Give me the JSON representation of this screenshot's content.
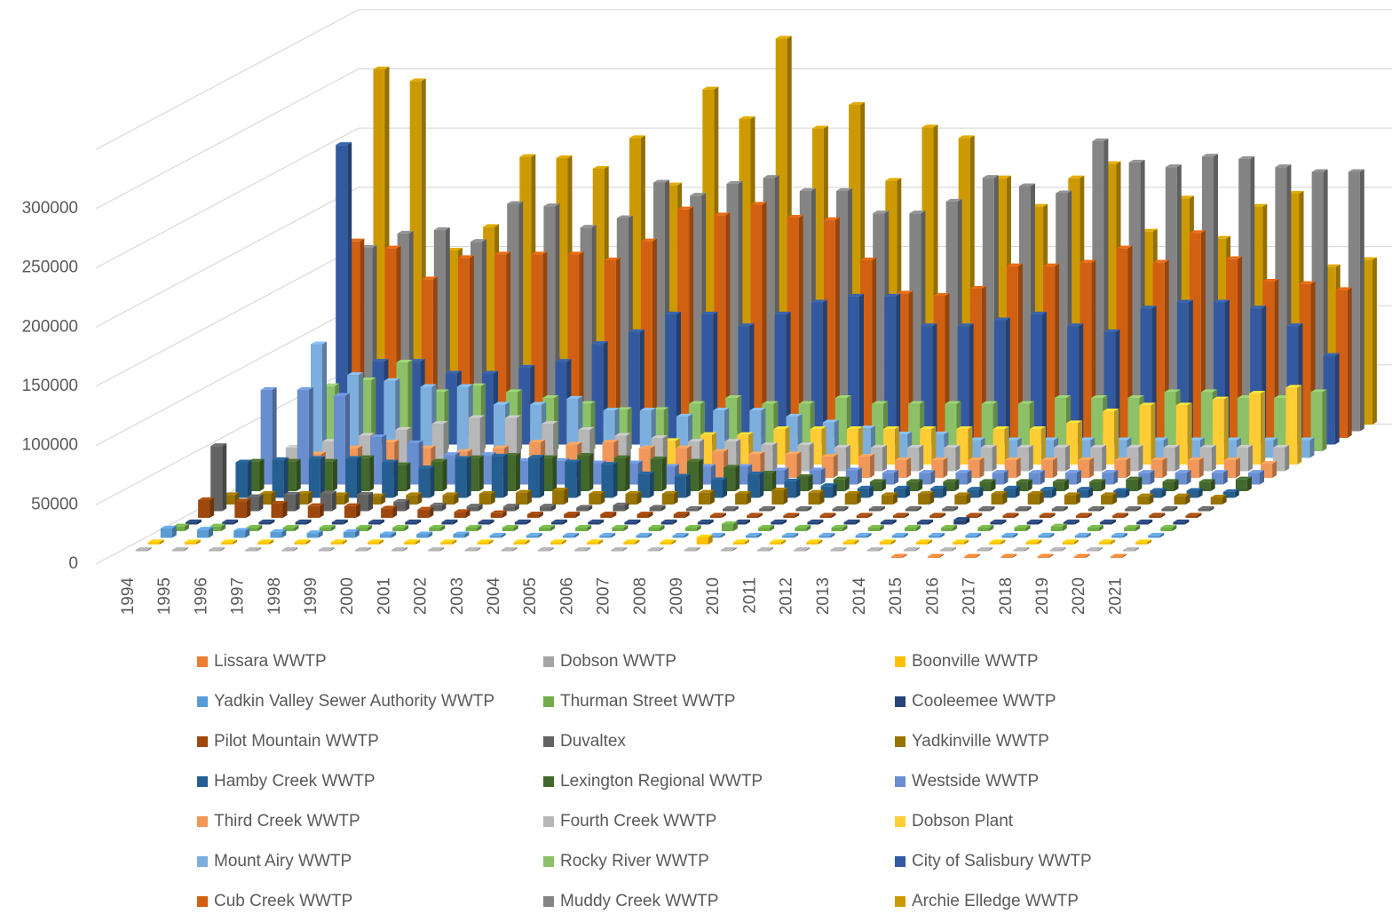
{
  "chart_data": {
    "type": "bar3d",
    "categories": [
      "1994",
      "1995",
      "1996",
      "1997",
      "1998",
      "1999",
      "2000",
      "2001",
      "2002",
      "2003",
      "2004",
      "2005",
      "2006",
      "2007",
      "2008",
      "2009",
      "2010",
      "2011",
      "2012",
      "2013",
      "2014",
      "2015",
      "2016",
      "2017",
      "2018",
      "2019",
      "2020",
      "2021"
    ],
    "ylim": [
      0,
      350000
    ],
    "yticks": [
      0,
      50000,
      100000,
      150000,
      200000,
      250000,
      300000
    ],
    "grid": true,
    "series": [
      {
        "name": "Lissara WWTP",
        "color": "#ed7d31",
        "values": [
          null,
          null,
          null,
          null,
          null,
          null,
          null,
          null,
          null,
          null,
          null,
          null,
          null,
          null,
          null,
          null,
          null,
          null,
          null,
          null,
          null,
          1000,
          1000,
          1000,
          1000,
          1000,
          1000,
          1000
        ]
      },
      {
        "name": "Dobson WWTP",
        "color": "#a5a5a5",
        "values": [
          1000,
          1000,
          1000,
          1000,
          1000,
          1000,
          1000,
          1000,
          1000,
          1000,
          1000,
          1000,
          1000,
          1000,
          1000,
          1000,
          1000,
          1000,
          1000,
          1000,
          1000,
          1000,
          1000,
          1000,
          1000,
          1000,
          1000,
          1000
        ]
      },
      {
        "name": "Boonville WWTP",
        "color": "#ffc000",
        "values": [
          2000,
          2000,
          2000,
          2000,
          2000,
          2000,
          2000,
          2000,
          2000,
          2000,
          2000,
          2000,
          2000,
          2000,
          2000,
          6000,
          2000,
          2000,
          2000,
          2000,
          2000,
          2000,
          2000,
          2000,
          2000,
          2000,
          2000,
          2000
        ]
      },
      {
        "name": "Yadkin Valley Sewer Authority WWTP",
        "color": "#5b9bd5",
        "values": [
          8000,
          7000,
          6000,
          5000,
          4000,
          5000,
          3000,
          3000,
          3000,
          2000,
          2000,
          2000,
          2000,
          2000,
          2000,
          2000,
          2000,
          2000,
          2000,
          2000,
          2000,
          2000,
          2000,
          2000,
          2000,
          2000,
          2000,
          2000
        ]
      },
      {
        "name": "Thurman Street WWTP",
        "color": "#70ad47",
        "values": [
          4000,
          4000,
          3000,
          3000,
          3000,
          3000,
          3000,
          3000,
          3000,
          3000,
          3000,
          3000,
          3000,
          3000,
          3000,
          6000,
          3000,
          3000,
          3000,
          3000,
          3000,
          3000,
          3000,
          3000,
          4000,
          3000,
          3000,
          3000
        ]
      },
      {
        "name": "Cooleemee WWTP",
        "color": "#264478",
        "values": [
          2000,
          2000,
          2000,
          2000,
          2000,
          2000,
          2000,
          2000,
          2000,
          2000,
          2000,
          2000,
          2000,
          2000,
          2000,
          2000,
          2000,
          2000,
          2000,
          2000,
          2000,
          4000,
          2000,
          2000,
          2000,
          2000,
          2000,
          2000
        ]
      },
      {
        "name": "Pilot Mountain WWTP",
        "color": "#9e480e",
        "values": [
          15000,
          14000,
          12000,
          10000,
          10000,
          8000,
          7000,
          5000,
          4000,
          3000,
          3000,
          3000,
          3000,
          3000,
          2000,
          2000,
          2000,
          2000,
          2000,
          2000,
          2000,
          2000,
          2000,
          2000,
          2000,
          2000,
          2000,
          2000
        ]
      },
      {
        "name": "Duvaltex",
        "color": "#636363",
        "values": [
          55000,
          12000,
          14000,
          15000,
          14000,
          8000,
          5000,
          4000,
          4000,
          4000,
          3000,
          5000,
          3000,
          2000,
          2000,
          2000,
          2000,
          2000,
          2000,
          2000,
          2000,
          2000,
          2000,
          2000,
          2000,
          2000,
          2000,
          2000
        ]
      },
      {
        "name": "Yadkinville WWTP",
        "color": "#997300",
        "values": [
          8000,
          9000,
          9000,
          8000,
          7000,
          8000,
          8000,
          9000,
          10000,
          12000,
          9000,
          9000,
          9000,
          10000,
          9000,
          12000,
          10000,
          9000,
          8000,
          9000,
          8000,
          9000,
          9000,
          8000,
          8000,
          7000,
          7000,
          6000
        ]
      },
      {
        "name": "Hamby Creek WWTP",
        "color": "#255e91",
        "values": [
          30000,
          32000,
          33000,
          33000,
          30000,
          25000,
          33000,
          35000,
          34000,
          30000,
          28000,
          20000,
          18000,
          15000,
          20000,
          14000,
          10000,
          8000,
          8000,
          8000,
          7000,
          8000,
          7000,
          7000,
          6000,
          6000,
          6000,
          5000
        ]
      },
      {
        "name": "Lexington Regional WWTP",
        "color": "#43682b",
        "values": [
          25000,
          25000,
          25000,
          28000,
          22000,
          25000,
          28000,
          30000,
          28000,
          30000,
          28000,
          27000,
          25000,
          20000,
          15000,
          12000,
          10000,
          8000,
          8000,
          8000,
          8000,
          8000,
          8000,
          8000,
          10000,
          8000,
          8000,
          10000
        ]
      },
      {
        "name": "Westside WWTP",
        "color": "#698ed0",
        "values": [
          80000,
          80000,
          75000,
          40000,
          35000,
          25000,
          25000,
          20000,
          20000,
          18000,
          18000,
          15000,
          15000,
          15000,
          12000,
          12000,
          12000,
          10000,
          10000,
          10000,
          10000,
          10000,
          10000,
          10000,
          10000,
          10000,
          10000,
          10000
        ]
      },
      {
        "name": "Third Creek WWTP",
        "color": "#f1975a",
        "values": [
          15000,
          20000,
          25000,
          30000,
          25000,
          22000,
          25000,
          30000,
          28000,
          30000,
          25000,
          25000,
          22000,
          20000,
          20000,
          18000,
          18000,
          15000,
          15000,
          15000,
          15000,
          15000,
          15000,
          15000,
          15000,
          15000,
          15000,
          12000
        ]
      },
      {
        "name": "Fourth Creek WWTP",
        "color": "#b7b7b7",
        "values": [
          20000,
          25000,
          30000,
          35000,
          40000,
          45000,
          45000,
          40000,
          35000,
          30000,
          28000,
          25000,
          25000,
          22000,
          22000,
          20000,
          20000,
          20000,
          20000,
          20000,
          20000,
          20000,
          20000,
          20000,
          20000,
          20000,
          20000,
          20000
        ]
      },
      {
        "name": "Dobson Plant",
        "color": "#ffcd33",
        "values": [
          null,
          null,
          null,
          null,
          null,
          null,
          null,
          null,
          null,
          null,
          20000,
          25000,
          25000,
          30000,
          30000,
          30000,
          30000,
          30000,
          30000,
          30000,
          30000,
          35000,
          45000,
          50000,
          50000,
          55000,
          60000,
          65000
        ]
      },
      {
        "name": "Mount Airy WWTP",
        "color": "#7cafdd",
        "values": [
          96000,
          70000,
          65000,
          60000,
          60000,
          45000,
          45000,
          50000,
          40000,
          40000,
          35000,
          40000,
          40000,
          35000,
          30000,
          25000,
          20000,
          20000,
          15000,
          15000,
          15000,
          15000,
          15000,
          15000,
          15000,
          15000,
          15000,
          15000
        ]
      },
      {
        "name": "Rocky River WWTP",
        "color": "#8cc168",
        "values": [
          55000,
          60000,
          75000,
          50000,
          55000,
          50000,
          45000,
          40000,
          35000,
          35000,
          40000,
          45000,
          40000,
          40000,
          45000,
          40000,
          40000,
          40000,
          40000,
          40000,
          45000,
          45000,
          45000,
          50000,
          50000,
          45000,
          45000,
          50000
        ]
      },
      {
        "name": "City of Salisbury WWTP",
        "color": "#335aa1",
        "values": [
          253000,
          70000,
          70000,
          60000,
          60000,
          65000,
          70000,
          85000,
          95000,
          110000,
          110000,
          100000,
          110000,
          120000,
          125000,
          125000,
          100000,
          100000,
          105000,
          110000,
          100000,
          95000,
          115000,
          120000,
          120000,
          115000,
          100000,
          75000
        ]
      },
      {
        "name": "Cub Creek WWTP",
        "color": "#d26012",
        "values": [
          166000,
          160000,
          134000,
          152000,
          155000,
          155000,
          155000,
          150000,
          166000,
          193000,
          188000,
          197000,
          186000,
          184000,
          150000,
          122000,
          120000,
          126000,
          145000,
          145000,
          148000,
          160000,
          148000,
          173000,
          151000,
          132000,
          130000,
          125000
        ]
      },
      {
        "name": "Muddy Creek WWTP",
        "color": "#848484",
        "values": [
          155000,
          167000,
          170000,
          160000,
          192000,
          190000,
          172000,
          180000,
          210000,
          199000,
          209000,
          214000,
          203000,
          203000,
          184000,
          184000,
          194000,
          214000,
          207000,
          201000,
          245000,
          227000,
          223000,
          232000,
          230000,
          223000,
          219000,
          219000
        ]
      },
      {
        "name": "Archie Elledge WWTP",
        "color": "#cc9a00",
        "values": [
          300000,
          290000,
          147000,
          167000,
          226000,
          225000,
          216000,
          242000,
          202000,
          283000,
          258000,
          326000,
          250000,
          270000,
          206000,
          251000,
          242000,
          208000,
          184000,
          208000,
          220000,
          163000,
          191000,
          157000,
          184000,
          195000,
          133000,
          139000
        ]
      }
    ]
  }
}
